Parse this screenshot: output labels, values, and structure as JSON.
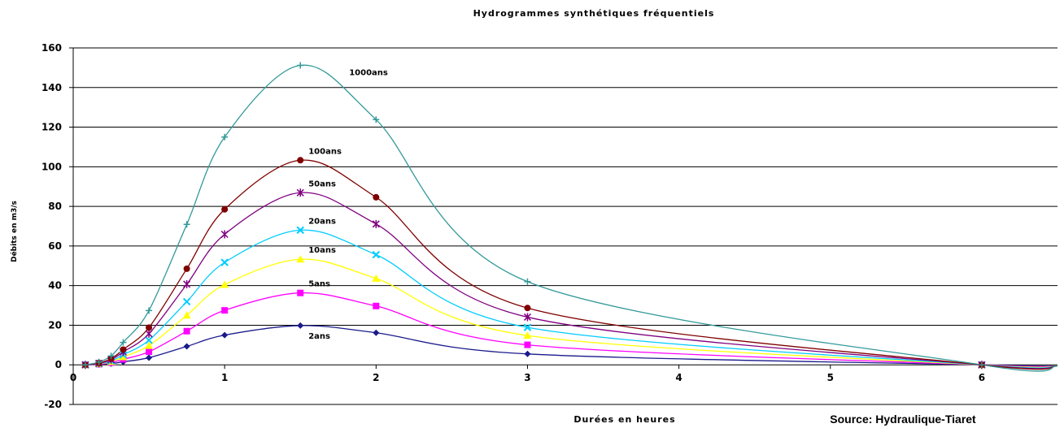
{
  "chart_data": {
    "type": "line",
    "title": "Hydrogrammes synthétiques fréquentiels",
    "xlabel": "Durées en heures",
    "ylabel": "Débits en m3/s",
    "source": "Source: Hydraulique-Tiaret",
    "xlim": [
      0,
      6.5
    ],
    "ylim": [
      -20,
      160
    ],
    "x_ticks": [
      0,
      1,
      2,
      3,
      4,
      5,
      6
    ],
    "y_ticks": [
      -20,
      0,
      20,
      40,
      60,
      80,
      100,
      120,
      140,
      160
    ],
    "grid": true,
    "x": [
      0.08,
      0.17,
      0.25,
      0.33,
      0.5,
      0.75,
      1.0,
      1.5,
      2.0,
      3.0,
      6.0
    ],
    "series": [
      {
        "name": "2ans",
        "color": "#1a1a8c",
        "marker": "diamond",
        "values": [
          0.0,
          0.2,
          0.6,
          1.5,
          3.6,
          9.3,
          15.0,
          19.8,
          16.2,
          5.5,
          0.0
        ]
      },
      {
        "name": "5ans",
        "color": "#ff00ff",
        "marker": "square",
        "values": [
          0.0,
          0.3,
          1.1,
          2.8,
          6.6,
          17.0,
          27.5,
          36.3,
          29.7,
          10.1,
          0.0
        ]
      },
      {
        "name": "10ans",
        "color": "#ffff00",
        "marker": "triangle",
        "values": [
          0.0,
          0.5,
          1.6,
          4.0,
          9.7,
          25.0,
          40.5,
          53.3,
          43.6,
          14.8,
          0.0
        ]
      },
      {
        "name": "20ans",
        "color": "#00ccff",
        "marker": "x",
        "values": [
          0.0,
          0.6,
          2.0,
          5.1,
          12.4,
          31.9,
          51.7,
          68.0,
          55.6,
          18.9,
          0.0
        ]
      },
      {
        "name": "50ans",
        "color": "#800080",
        "marker": "star",
        "values": [
          0.0,
          0.8,
          2.6,
          6.5,
          15.7,
          40.7,
          65.9,
          86.9,
          71.1,
          24.1,
          0.0
        ]
      },
      {
        "name": "100ans",
        "color": "#800000",
        "marker": "circle",
        "values": [
          0.0,
          0.9,
          3.1,
          7.7,
          18.8,
          48.5,
          78.5,
          103.3,
          84.6,
          28.7,
          0.0
        ]
      },
      {
        "name": "1000ans",
        "color": "#339999",
        "marker": "plus",
        "values": [
          0.0,
          1.4,
          4.5,
          11.3,
          27.4,
          70.9,
          115.0,
          151.2,
          123.8,
          42.0,
          0.0
        ]
      }
    ]
  }
}
